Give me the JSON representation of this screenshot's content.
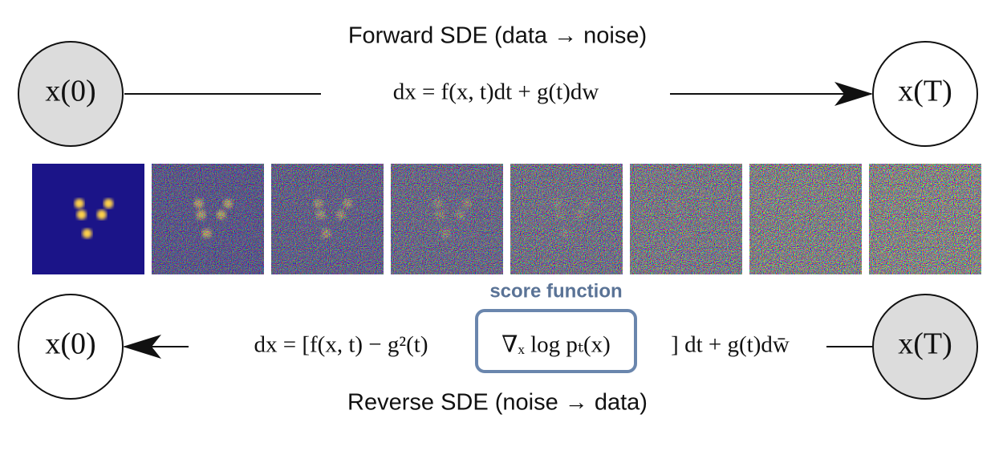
{
  "forward": {
    "label": "Forward SDE (data → noise)",
    "equation": "dx = f(x, t)dt + g(t)dw",
    "start": "x(0)",
    "end": "x(T)"
  },
  "reverse": {
    "label": "Reverse SDE (noise → data)",
    "equation_prefix": "dx = [f(x, t) − g²(t)",
    "score_term": "∇ₓ log pₜ(x)",
    "equation_suffix": "] dt + g(t)dw̄",
    "start": "x(T)",
    "end": "x(0)"
  },
  "score_label": "score function"
}
